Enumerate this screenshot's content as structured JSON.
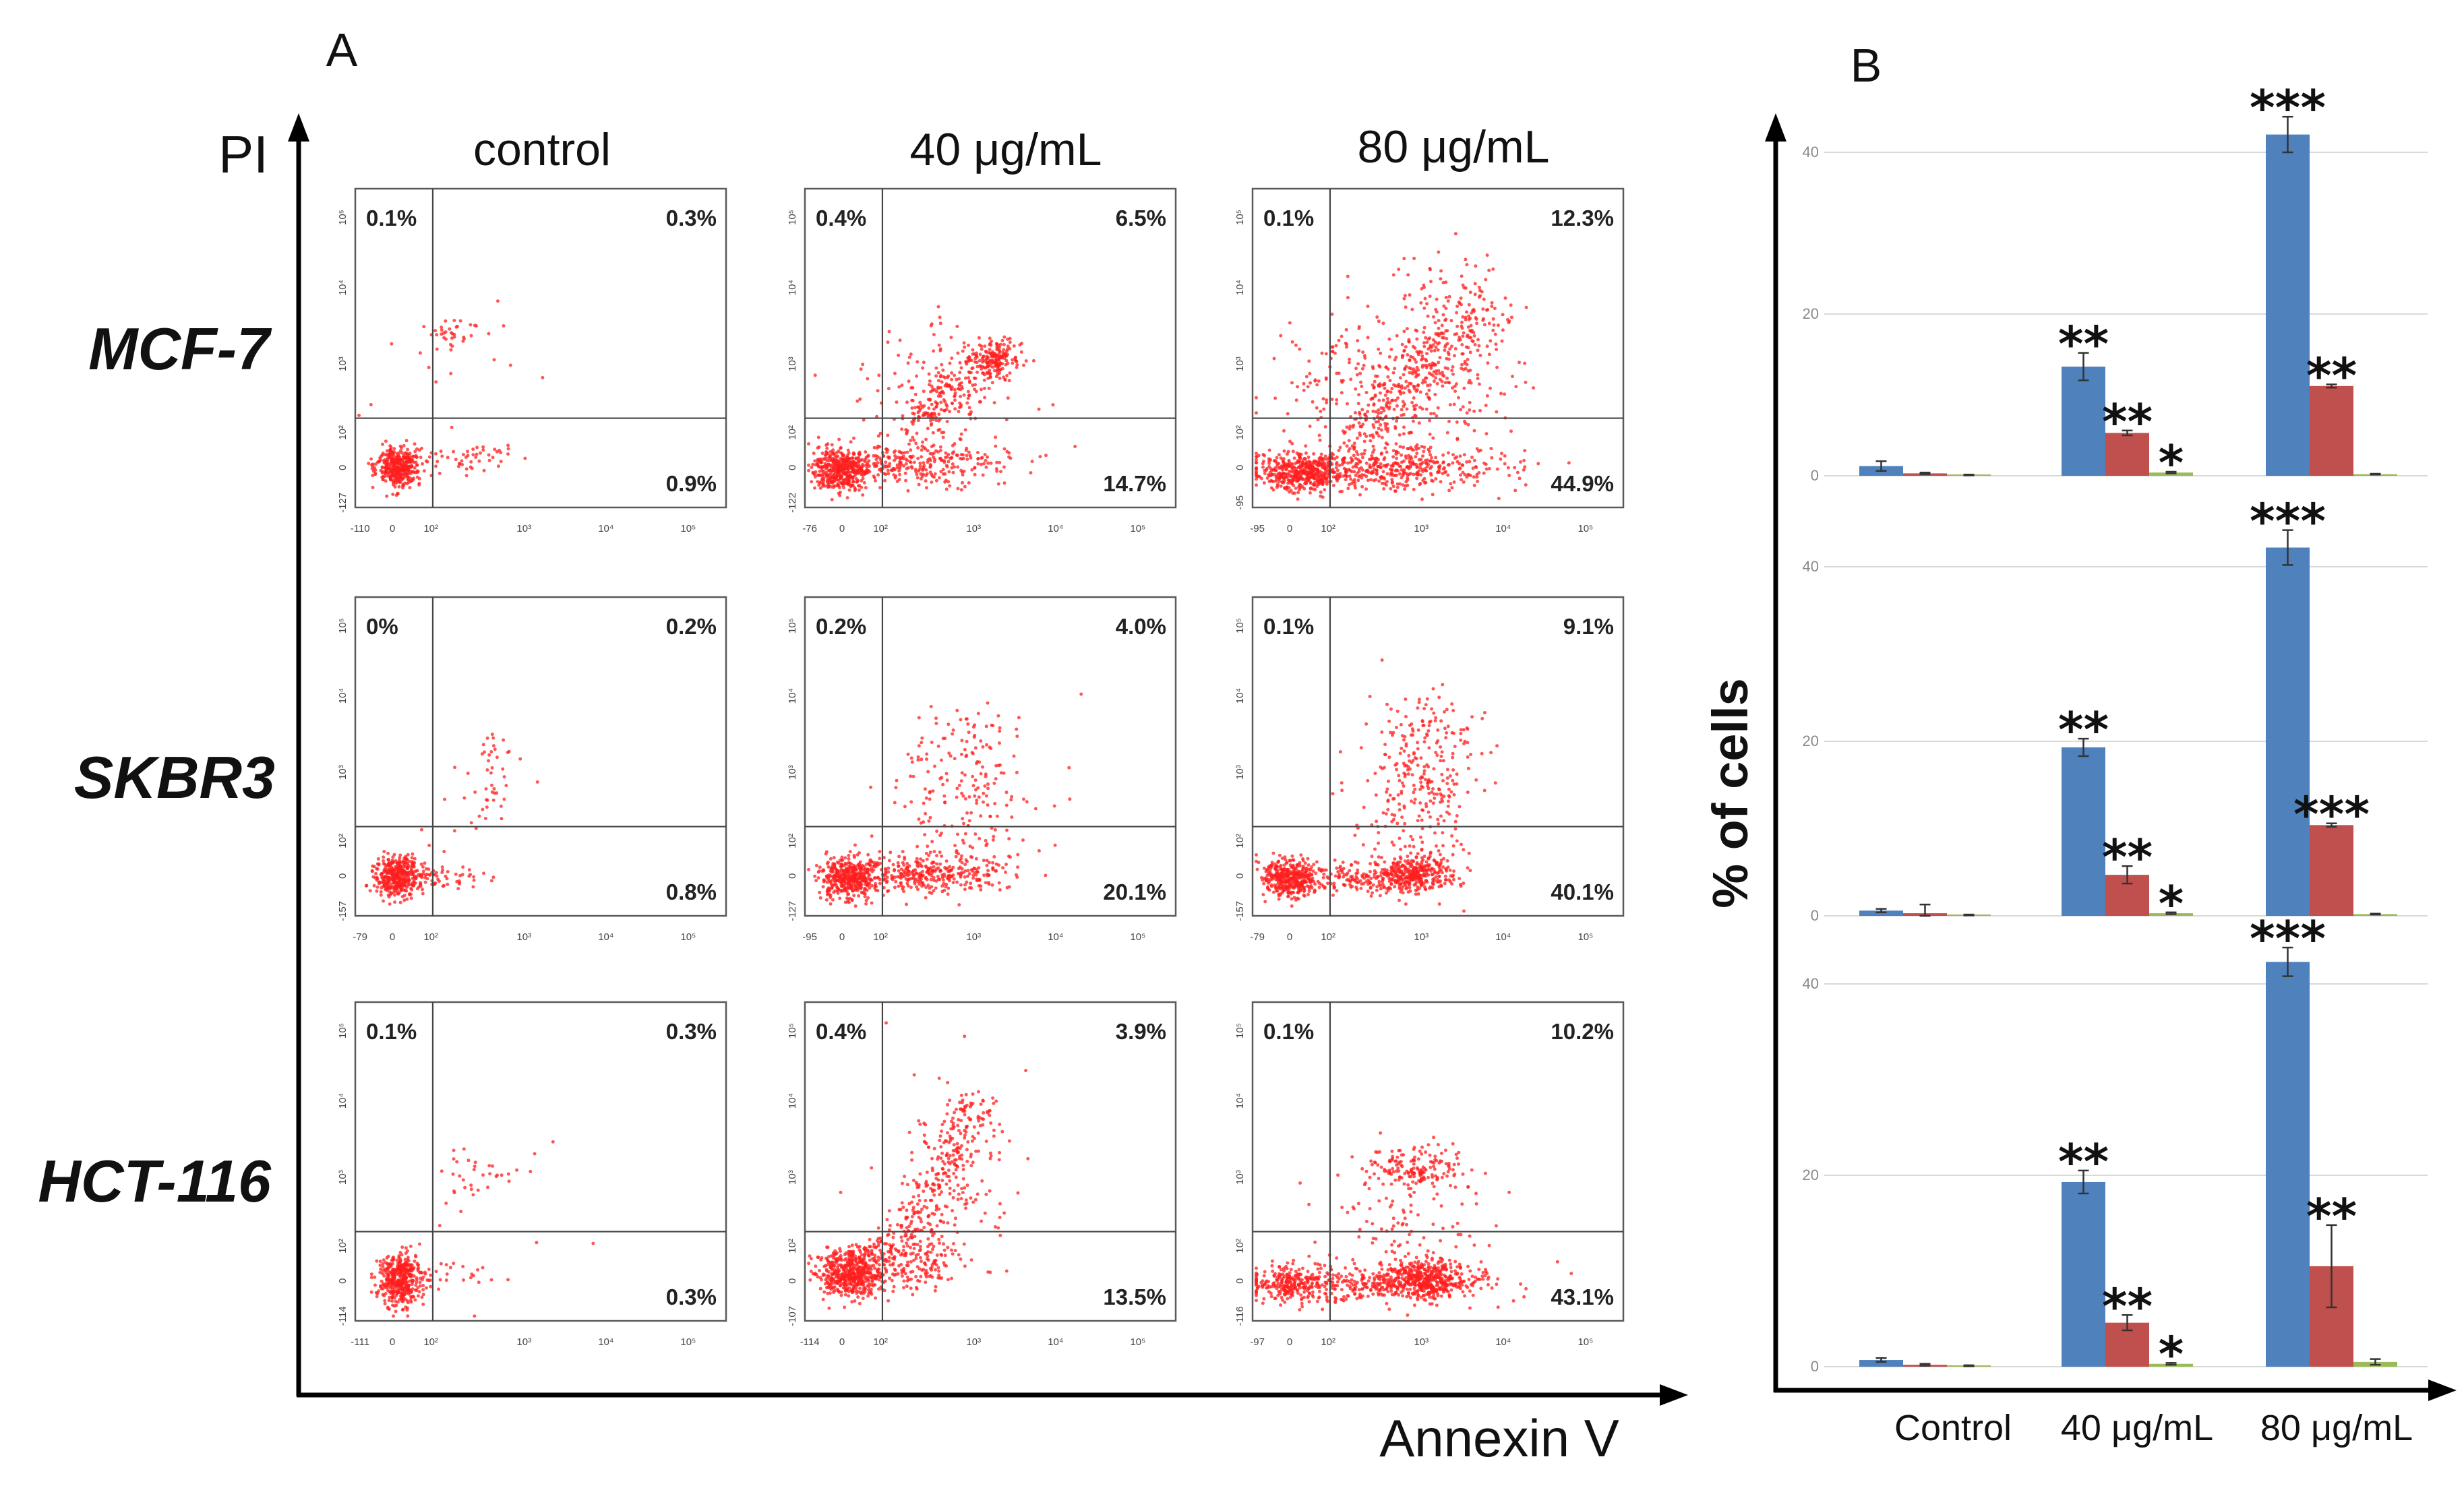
{
  "chart_data": [
    {
      "type": "scatter",
      "panel_label": "A",
      "xlabel": "Annexin V",
      "ylabel": "PI",
      "columns": [
        "control",
        "40 μg/mL",
        "80 μg/mL"
      ],
      "axis_tick_labels": [
        "0",
        "10²",
        "10³",
        "10⁴",
        "10⁵"
      ],
      "rows": [
        {
          "label": "MCF-7",
          "plots": [
            {
              "upper_left": "0.1%",
              "upper_right": "0.3%",
              "lower_right": "0.9%",
              "x_min": "-110",
              "y_min": "-127"
            },
            {
              "upper_left": "0.4%",
              "upper_right": "6.5%",
              "lower_right": "14.7%",
              "x_min": "-76",
              "y_min": "-122"
            },
            {
              "upper_left": "0.1%",
              "upper_right": "12.3%",
              "lower_right": "44.9%",
              "x_min": "-95",
              "y_min": "-95"
            }
          ]
        },
        {
          "label": "SKBR3",
          "plots": [
            {
              "upper_left": "0%",
              "upper_right": "0.2%",
              "lower_right": "0.8%",
              "x_min": "-79",
              "y_min": "-157"
            },
            {
              "upper_left": "0.2%",
              "upper_right": "4.0%",
              "lower_right": "20.1%",
              "x_min": "-95",
              "y_min": "-127"
            },
            {
              "upper_left": "0.1%",
              "upper_right": "9.1%",
              "lower_right": "40.1%",
              "x_min": "-79",
              "y_min": "-157"
            }
          ]
        },
        {
          "label": "HCT-116",
          "plots": [
            {
              "upper_left": "0.1%",
              "upper_right": "0.3%",
              "lower_right": "0.3%",
              "x_min": "-111",
              "y_min": "-114"
            },
            {
              "upper_left": "0.4%",
              "upper_right": "3.9%",
              "lower_right": "13.5%",
              "x_min": "-114",
              "y_min": "-107"
            },
            {
              "upper_left": "0.1%",
              "upper_right": "10.2%",
              "lower_right": "43.1%",
              "x_min": "-97",
              "y_min": "-116"
            }
          ]
        }
      ]
    },
    {
      "type": "bar",
      "panel_label": "B",
      "ylabel": "% of cells",
      "categories": [
        "Control",
        "40 μg/mL",
        "80 μg/mL"
      ],
      "ylim": [
        0,
        45
      ],
      "yticks": [
        "0",
        "20",
        "40"
      ],
      "grid": true,
      "subplots": [
        {
          "series": [
            {
              "color": "#4F81BD",
              "values": [
                1.2,
                13.5,
                42.2
              ],
              "errors": [
                0.6,
                1.7,
                2.2
              ],
              "significance": [
                "",
                "**",
                "***"
              ]
            },
            {
              "color": "#C0504D",
              "values": [
                0.3,
                5.3,
                11.1
              ],
              "errors": [
                0.1,
                0.3,
                0.2
              ],
              "significance": [
                "",
                "**",
                "**"
              ]
            },
            {
              "color": "#9BBB59",
              "values": [
                0.1,
                0.4,
                0.2
              ],
              "errors": [
                0.05,
                0.1,
                0.05
              ],
              "significance": [
                "",
                "*",
                ""
              ]
            }
          ]
        },
        {
          "series": [
            {
              "color": "#4F81BD",
              "values": [
                0.6,
                19.3,
                42.2
              ],
              "errors": [
                0.2,
                1.0,
                2.0
              ],
              "significance": [
                "",
                "**",
                "***"
              ]
            },
            {
              "color": "#C0504D",
              "values": [
                0.3,
                4.7,
                10.4
              ],
              "errors": [
                1.0,
                1.0,
                0.2
              ],
              "significance": [
                "",
                "**",
                "***"
              ]
            },
            {
              "color": "#9BBB59",
              "values": [
                0.1,
                0.3,
                0.2
              ],
              "errors": [
                0.05,
                0.1,
                0.05
              ],
              "significance": [
                "",
                "*",
                ""
              ]
            }
          ]
        },
        {
          "series": [
            {
              "color": "#4F81BD",
              "values": [
                0.7,
                19.3,
                42.3
              ],
              "errors": [
                0.2,
                1.2,
                1.5
              ],
              "significance": [
                "",
                "**",
                "***"
              ]
            },
            {
              "color": "#C0504D",
              "values": [
                0.2,
                4.6,
                10.5
              ],
              "errors": [
                0.1,
                0.8,
                4.3
              ],
              "significance": [
                "",
                "**",
                "**"
              ]
            },
            {
              "color": "#9BBB59",
              "values": [
                0.1,
                0.3,
                0.5
              ],
              "errors": [
                0.05,
                0.1,
                0.3
              ],
              "significance": [
                "",
                "*",
                ""
              ]
            }
          ]
        }
      ]
    }
  ]
}
